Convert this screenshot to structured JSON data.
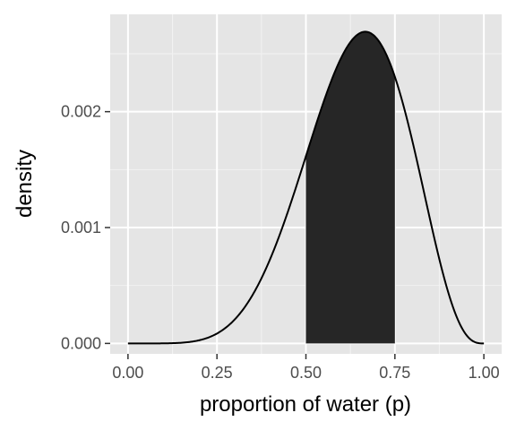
{
  "chart_data": {
    "type": "area",
    "xlabel": "proportion of water (p)",
    "ylabel": "density",
    "xlim": [
      -0.05,
      1.05
    ],
    "ylim": [
      -9e-05,
      0.00284
    ],
    "x_ticks": [
      0.0,
      0.25,
      0.5,
      0.75,
      1.0
    ],
    "x_tick_labels": [
      "0.00",
      "0.25",
      "0.50",
      "0.75",
      "1.00"
    ],
    "y_ticks": [
      0.0,
      0.001,
      0.002
    ],
    "y_tick_labels": [
      "0.000",
      "0.001",
      "0.002"
    ],
    "grid": true,
    "legend": "none",
    "series": [
      {
        "x": [
          0.0,
          0.05,
          0.1,
          0.15,
          0.2,
          0.25,
          0.3,
          0.35,
          0.4,
          0.45,
          0.5,
          0.55,
          0.6,
          0.65,
          0.667,
          0.7,
          0.75,
          0.8,
          0.85,
          0.9,
          0.95,
          1.0
        ],
        "y": [
          0.0,
          5e-07,
          7.4e-06,
          3.52e-05,
          0.0001048,
          0.0002388,
          0.0004536,
          0.000754,
          0.0011254,
          0.001544,
          0.001955,
          0.002306,
          0.002555,
          0.00268,
          0.00269,
          0.002638,
          0.002447,
          0.002028,
          0.001482,
          0.000834,
          0.000266,
          0.0
        ]
      }
    ],
    "shaded_interval": {
      "from": 0.5,
      "to": 0.75
    }
  },
  "colors": {
    "panel": "#e5e5e5",
    "grid_major": "#ffffff",
    "grid_minor": "#f2f2f2",
    "curve": "#000000",
    "shade": "#262626",
    "tick_text": "#4d4d4d",
    "tick_mark": "#333333"
  }
}
